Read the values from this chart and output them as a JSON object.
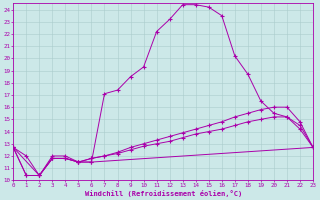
{
  "xlabel": "Windchill (Refroidissement éolien,°C)",
  "xlim": [
    0,
    23
  ],
  "ylim": [
    10,
    24.5
  ],
  "yticks": [
    10,
    11,
    12,
    13,
    14,
    15,
    16,
    17,
    18,
    19,
    20,
    21,
    22,
    23,
    24
  ],
  "xticks": [
    0,
    1,
    2,
    3,
    4,
    5,
    6,
    7,
    8,
    9,
    10,
    11,
    12,
    13,
    14,
    15,
    16,
    17,
    18,
    19,
    20,
    21,
    22,
    23
  ],
  "bg_color": "#cce8e8",
  "line_color": "#aa00aa",
  "grid_color": "#aacccc",
  "series1_x": [
    0,
    1,
    2,
    3,
    4,
    5,
    6,
    7,
    8,
    9,
    10,
    11,
    12,
    13,
    14,
    15,
    16,
    17,
    18,
    19,
    20,
    21,
    22,
    23
  ],
  "series1_y": [
    12.7,
    12.0,
    10.4,
    12.0,
    12.0,
    11.5,
    11.5,
    17.1,
    17.4,
    18.5,
    19.3,
    22.2,
    23.2,
    24.4,
    24.4,
    24.2,
    23.5,
    20.2,
    18.7,
    16.5,
    15.5,
    15.2,
    14.2,
    12.7
  ],
  "series2_x": [
    0,
    2,
    3,
    4,
    5,
    6,
    23
  ],
  "series2_y": [
    12.7,
    10.4,
    11.8,
    11.8,
    11.5,
    11.5,
    12.7
  ],
  "series3_x": [
    0,
    1,
    2,
    3,
    4,
    5,
    6,
    7,
    8,
    9,
    10,
    11,
    12,
    13,
    14,
    15,
    16,
    17,
    18,
    19,
    20,
    21,
    22,
    23
  ],
  "series3_y": [
    12.7,
    10.4,
    10.4,
    11.8,
    11.8,
    11.5,
    11.8,
    12.0,
    12.3,
    12.7,
    13.0,
    13.3,
    13.6,
    13.9,
    14.2,
    14.5,
    14.8,
    15.2,
    15.5,
    15.8,
    16.0,
    16.0,
    14.8,
    12.7
  ],
  "series4_x": [
    0,
    1,
    2,
    3,
    4,
    5,
    6,
    7,
    8,
    9,
    10,
    11,
    12,
    13,
    14,
    15,
    16,
    17,
    18,
    19,
    20,
    21,
    22,
    23
  ],
  "series4_y": [
    12.7,
    10.4,
    10.4,
    11.8,
    11.8,
    11.5,
    11.8,
    12.0,
    12.2,
    12.5,
    12.8,
    13.0,
    13.2,
    13.5,
    13.8,
    14.0,
    14.2,
    14.5,
    14.8,
    15.0,
    15.2,
    15.2,
    14.5,
    12.7
  ]
}
